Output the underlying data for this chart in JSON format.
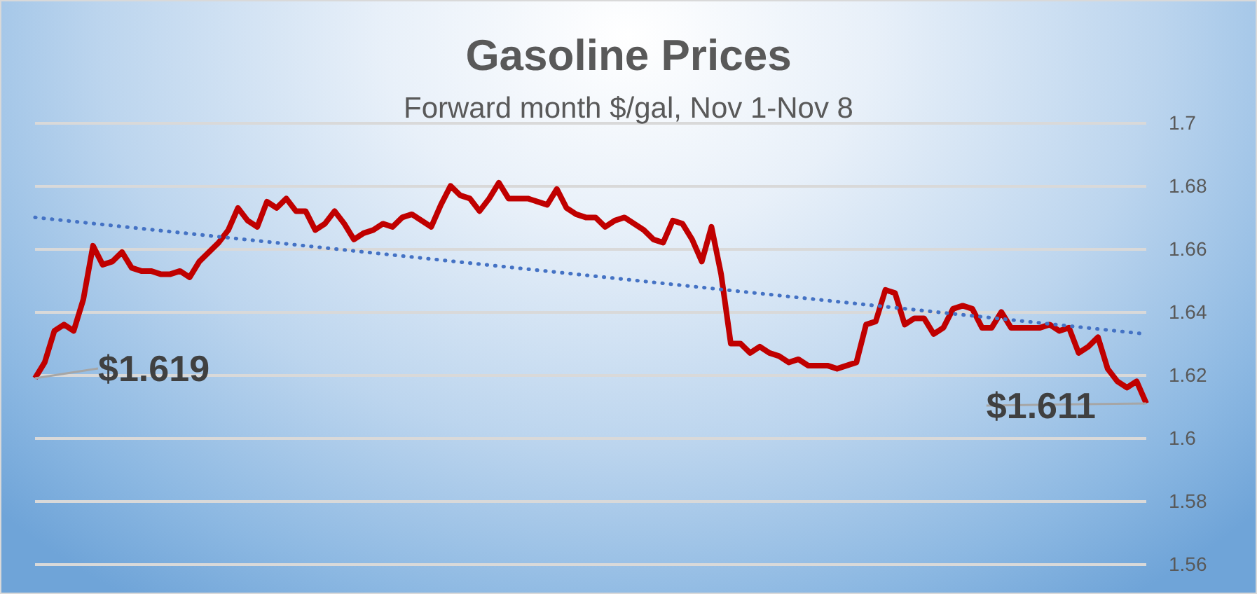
{
  "chart_data": {
    "type": "line",
    "title": "Gasoline Prices",
    "subtitle": "Forward month $/gal, Nov 1-Nov 8",
    "categories": [
      null,
      null,
      null,
      null,
      null,
      null,
      null,
      null,
      null,
      null,
      null,
      null,
      null,
      null,
      null,
      null,
      null,
      null,
      null,
      null,
      null,
      null,
      null,
      null,
      null,
      null,
      null,
      null,
      null,
      null,
      null,
      null,
      null,
      null,
      null,
      null,
      null,
      null,
      null,
      null,
      null,
      null,
      null,
      null,
      null,
      null,
      null,
      null,
      null,
      null,
      null,
      null,
      null,
      null,
      null,
      null,
      null,
      null,
      null,
      null,
      null,
      null,
      null,
      null,
      null,
      null,
      null,
      null,
      null,
      null,
      null,
      null,
      null,
      null,
      null,
      null,
      null,
      null,
      null,
      null,
      null,
      null,
      null,
      null,
      null,
      null,
      null,
      null,
      null,
      null,
      null,
      null,
      null,
      null,
      null,
      null,
      null,
      null,
      null,
      null,
      null,
      null,
      null,
      null,
      null,
      null,
      null,
      null,
      null,
      null,
      null,
      null,
      null,
      null,
      null,
      null
    ],
    "series": [
      {
        "color": "#c00000",
        "line_style": "solid",
        "values": [
          1.619,
          1.624,
          1.634,
          1.636,
          1.634,
          1.644,
          1.661,
          1.655,
          1.656,
          1.659,
          1.654,
          1.653,
          1.653,
          1.652,
          1.652,
          1.653,
          1.651,
          1.656,
          1.659,
          1.662,
          1.666,
          1.673,
          1.669,
          1.667,
          1.675,
          1.673,
          1.676,
          1.672,
          1.672,
          1.666,
          1.668,
          1.672,
          1.668,
          1.663,
          1.665,
          1.666,
          1.668,
          1.667,
          1.67,
          1.671,
          1.669,
          1.667,
          1.674,
          1.68,
          1.677,
          1.676,
          1.672,
          1.676,
          1.681,
          1.676,
          1.676,
          1.676,
          1.675,
          1.674,
          1.679,
          1.673,
          1.671,
          1.67,
          1.67,
          1.667,
          1.669,
          1.67,
          1.668,
          1.666,
          1.663,
          1.662,
          1.669,
          1.668,
          1.663,
          1.656,
          1.667,
          1.652,
          1.63,
          1.63,
          1.627,
          1.629,
          1.627,
          1.626,
          1.624,
          1.625,
          1.623,
          1.623,
          1.623,
          1.622,
          1.623,
          1.624,
          1.636,
          1.637,
          1.647,
          1.646,
          1.636,
          1.638,
          1.638,
          1.633,
          1.635,
          1.641,
          1.642,
          1.641,
          1.635,
          1.635,
          1.64,
          1.635,
          1.635,
          1.635,
          1.635,
          1.636,
          1.634,
          1.635,
          1.627,
          1.629,
          1.632,
          1.622,
          1.618,
          1.616,
          1.618,
          1.611
        ],
        "value_labels": [
          "$1.619",
          null,
          null,
          null,
          null,
          null,
          null,
          null,
          null,
          null,
          null,
          null,
          null,
          null,
          null,
          null,
          null,
          null,
          null,
          null,
          null,
          null,
          null,
          null,
          null,
          null,
          null,
          null,
          null,
          null,
          null,
          null,
          null,
          null,
          null,
          null,
          null,
          null,
          null,
          null,
          null,
          null,
          null,
          null,
          null,
          null,
          null,
          null,
          null,
          null,
          null,
          null,
          null,
          null,
          null,
          null,
          null,
          null,
          null,
          null,
          null,
          null,
          null,
          null,
          null,
          null,
          null,
          null,
          null,
          null,
          null,
          null,
          null,
          null,
          null,
          null,
          null,
          null,
          null,
          null,
          null,
          null,
          null,
          null,
          null,
          null,
          null,
          null,
          null,
          null,
          null,
          null,
          null,
          null,
          null,
          null,
          null,
          null,
          null,
          null,
          null,
          null,
          null,
          null,
          null,
          null,
          null,
          null,
          null,
          null,
          null,
          null,
          null,
          null,
          null,
          "$1.611"
        ]
      },
      {
        "type": "line",
        "color": "#4472c4",
        "line_style": "dotted",
        "values": [
          1.67,
          null,
          null,
          null,
          null,
          null,
          null,
          null,
          null,
          null,
          null,
          null,
          null,
          null,
          null,
          null,
          null,
          null,
          null,
          null,
          null,
          null,
          null,
          null,
          null,
          null,
          null,
          null,
          null,
          null,
          null,
          null,
          null,
          null,
          null,
          null,
          null,
          null,
          null,
          null,
          null,
          null,
          null,
          null,
          null,
          null,
          null,
          null,
          null,
          null,
          null,
          null,
          null,
          null,
          null,
          null,
          null,
          null,
          null,
          null,
          null,
          null,
          null,
          null,
          null,
          null,
          null,
          null,
          null,
          null,
          null,
          null,
          null,
          null,
          null,
          null,
          null,
          null,
          null,
          null,
          null,
          null,
          null,
          null,
          null,
          null,
          null,
          null,
          null,
          null,
          null,
          null,
          null,
          null,
          null,
          null,
          null,
          null,
          null,
          null,
          null,
          null,
          null,
          null,
          null,
          null,
          null,
          null,
          null,
          null,
          null,
          null,
          null,
          null,
          null,
          1.633
        ]
      }
    ],
    "ylim": [
      1.56,
      1.7
    ],
    "yticks": [
      1.56,
      1.58,
      1.6,
      1.62,
      1.64,
      1.66,
      1.68,
      1.7
    ],
    "grid": "y",
    "tick_labels": "y"
  }
}
